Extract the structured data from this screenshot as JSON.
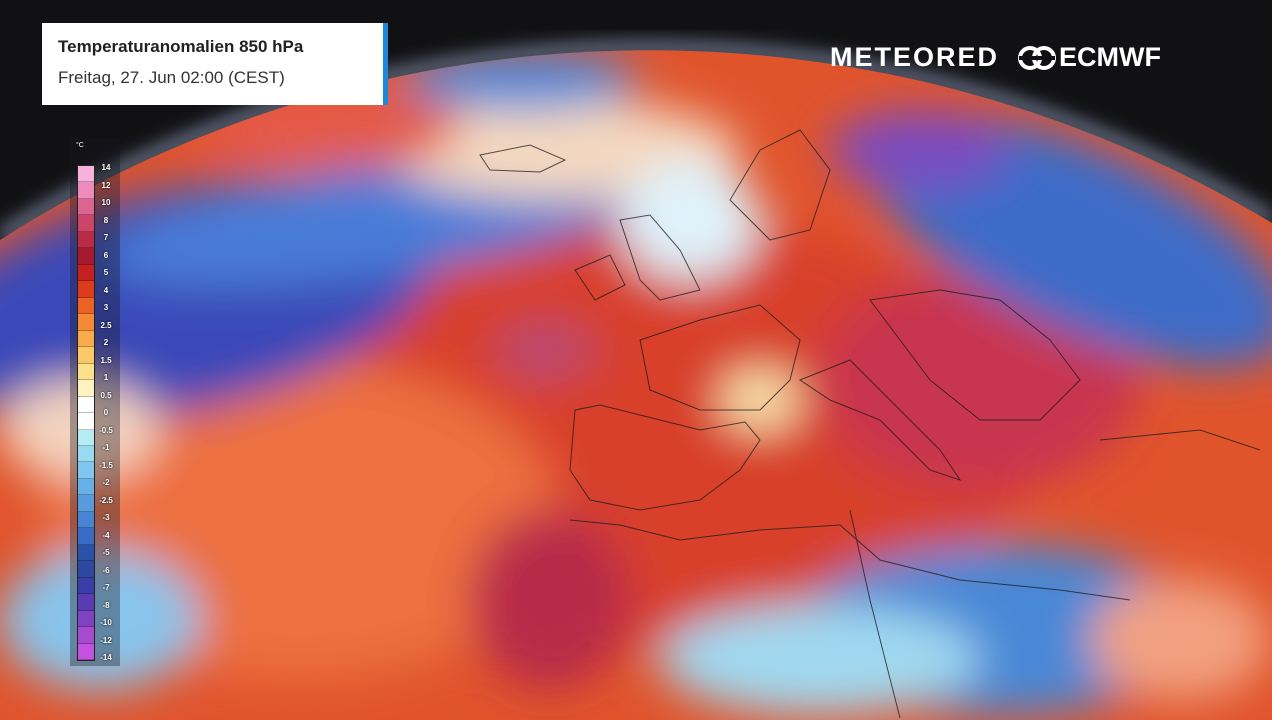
{
  "header": {
    "title": "Temperaturanomalien 850 hPa",
    "subtitle": "Freitag, 27. Jun 02:00 (CEST)",
    "accent": "#1e88d8"
  },
  "logos": {
    "meteored": "METEORED",
    "ecmwf": "ECMWF"
  },
  "legend": {
    "unit": "°C",
    "labels": [
      "14",
      "12",
      "10",
      "8",
      "7",
      "6",
      "5",
      "4",
      "3",
      "2.5",
      "2",
      "1.5",
      "1",
      "0.5",
      "0",
      "-0.5",
      "-1",
      "-1.5",
      "-2",
      "-2.5",
      "-3",
      "-4",
      "-5",
      "-6",
      "-7",
      "-8",
      "-10",
      "-12",
      "-14"
    ],
    "colors": [
      "#f6b2dc",
      "#ec8cbc",
      "#dc6490",
      "#cc4468",
      "#b82c48",
      "#a41a30",
      "#c42020",
      "#dc3c1c",
      "#ec6226",
      "#f48a36",
      "#f8ac4c",
      "#fac866",
      "#fce08c",
      "#fef2c2",
      "#ffffff",
      "#ffffff",
      "#b6ecf4",
      "#98daf0",
      "#80c6ee",
      "#68b0e8",
      "#589adc",
      "#4884d2",
      "#386cc4",
      "#2a52a8",
      "#2c48a0",
      "#3a3ea6",
      "#5a3cb2",
      "#8042c0",
      "#a64ace",
      "#c452e0"
    ]
  }
}
